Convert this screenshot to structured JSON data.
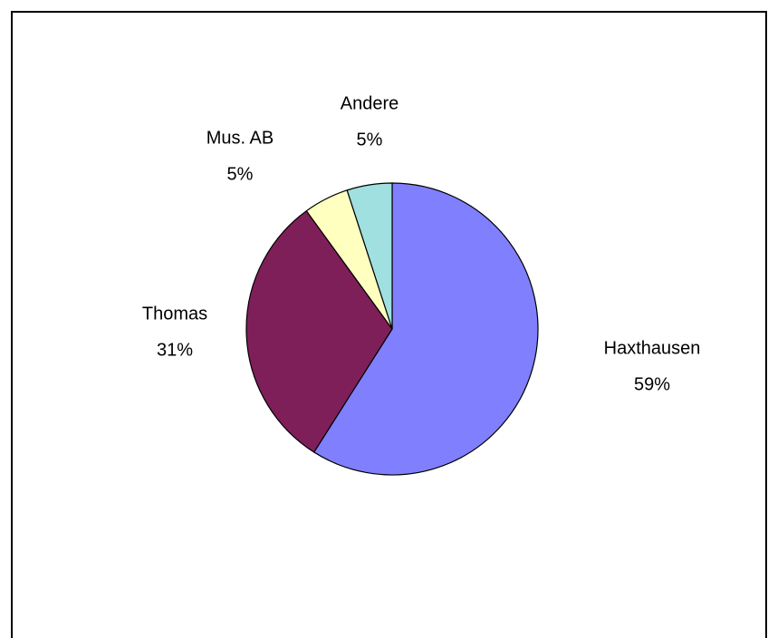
{
  "chart_data": {
    "type": "pie",
    "categories": [
      "Haxthausen",
      "Thomas",
      "Mus. AB",
      "Andere"
    ],
    "values": [
      59,
      31,
      5,
      5
    ],
    "value_labels": [
      "59%",
      "31%",
      "5%",
      "5%"
    ],
    "colors": [
      "#8080ff",
      "#7f1f5a",
      "#ffffc0",
      "#a0e0e0"
    ]
  }
}
